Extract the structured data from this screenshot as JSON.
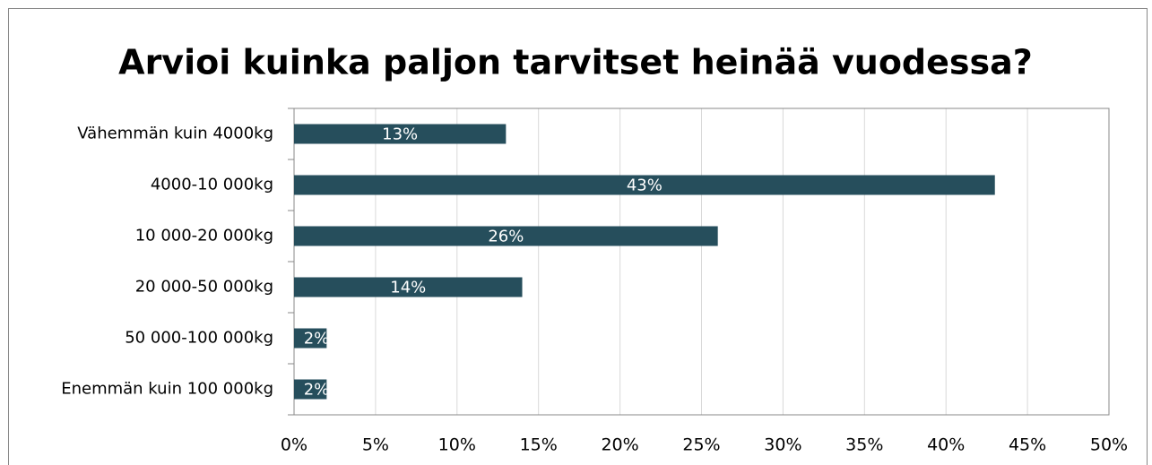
{
  "chart_data": {
    "type": "bar",
    "orientation": "horizontal",
    "title": "Arvioi kuinka paljon tarvitset heinää vuodessa?",
    "categories": [
      "Vähemmän kuin 4000kg",
      "4000-10 000kg",
      "10 000-20 000kg",
      "20 000-50 000kg",
      "50 000-100 000kg",
      "Enemmän kuin 100 000kg"
    ],
    "values": [
      13,
      43,
      26,
      14,
      2,
      2
    ],
    "value_labels": [
      "13%",
      "43%",
      "26%",
      "14%",
      "2%",
      "2%"
    ],
    "color": "#264e5c",
    "xlim": [
      0,
      50
    ],
    "xticks": [
      {
        "value": 0,
        "label": "0%"
      },
      {
        "value": 5,
        "label": "5%"
      },
      {
        "value": 10,
        "label": "10%"
      },
      {
        "value": 15,
        "label": "15%"
      },
      {
        "value": 20,
        "label": "20%"
      },
      {
        "value": 25,
        "label": "25%"
      },
      {
        "value": 30,
        "label": "30%"
      },
      {
        "value": 35,
        "label": "35%"
      },
      {
        "value": 40,
        "label": "40%"
      },
      {
        "value": 45,
        "label": "45%"
      },
      {
        "value": 50,
        "label": "50%"
      }
    ],
    "grid": true
  }
}
